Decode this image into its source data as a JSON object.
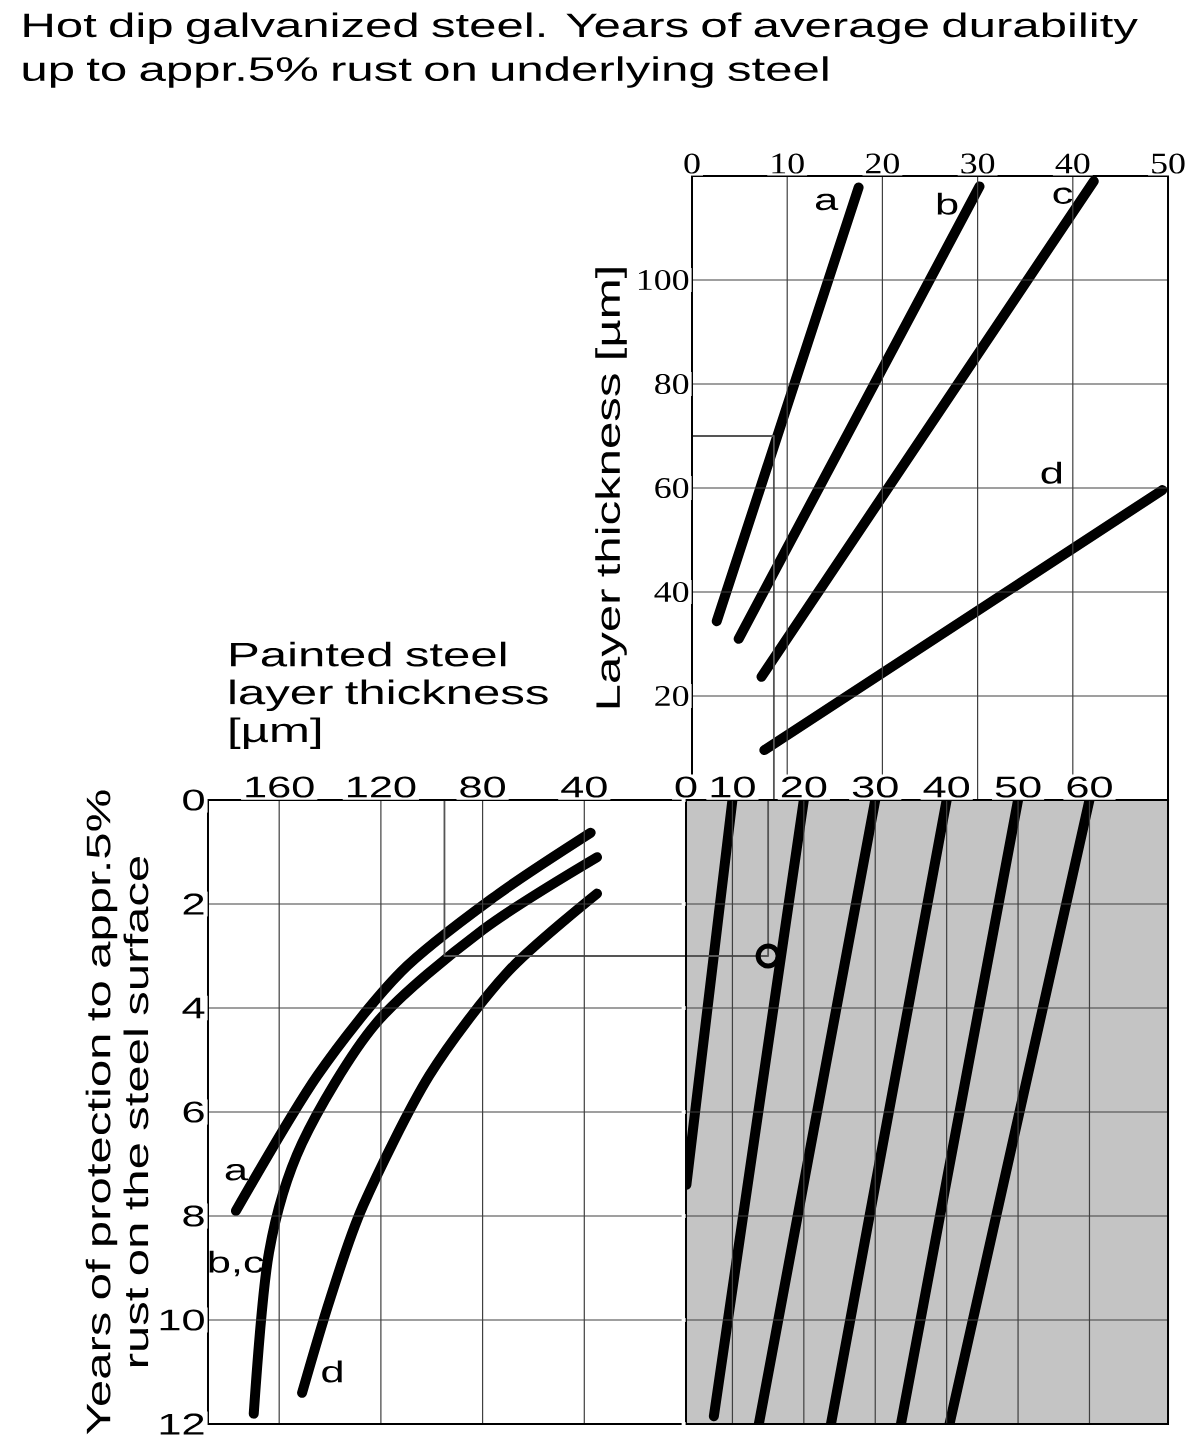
{
  "chart_data": [
    {
      "type": "line",
      "title": "Hot dip galvanized steel. Years of average durability up to appr.5% rust on underlying steel",
      "ylabel": "Layer thickness [µm]",
      "xlim": [
        0,
        50
      ],
      "xticks": [
        0,
        10,
        20,
        30,
        40,
        50
      ],
      "ylim": [
        0,
        120
      ],
      "yticks": [
        20,
        40,
        60,
        80,
        100
      ],
      "grid": true,
      "series": [
        {
          "name": "a",
          "color": "#000000",
          "x": [
            2.6,
            17.5
          ],
          "values": [
            34.4,
            117.8
          ]
        },
        {
          "name": "b",
          "color": "#000000",
          "x": [
            4.9,
            30.2
          ],
          "values": [
            31,
            118
          ]
        },
        {
          "name": "c",
          "color": "#000000",
          "x": [
            7.3,
            42.2
          ],
          "values": [
            23.7,
            119
          ]
        },
        {
          "name": "d",
          "color": "#000000",
          "x": [
            7.6,
            49.4
          ],
          "values": [
            9.6,
            59.6
          ]
        },
        {
          "color": "#555555",
          "x": [
            0,
            8.6,
            8.6
          ],
          "values": [
            70,
            70,
            0
          ]
        }
      ]
    },
    {
      "type": "line",
      "xlabel": "Painted steel layer thickness [µm]",
      "ylabel": "Years of protection to appr.5% rust on the steel surface",
      "xlim": [
        188,
        0
      ],
      "xticks": [
        160,
        120,
        80,
        40,
        0
      ],
      "ylim": [
        12,
        0
      ],
      "yticks": [
        0,
        2,
        4,
        6,
        8,
        10,
        12
      ],
      "grid": true,
      "series": [
        {
          "name": "a",
          "color": "#000000",
          "x": [
            37.5,
            75,
            112,
            145,
            177
          ],
          "values": [
            0.63,
            1.85,
            3.3,
            5.3,
            7.9
          ]
        },
        {
          "name": "b,c",
          "color": "#000000",
          "x": [
            35,
            80,
            122,
            151,
            164,
            170
          ],
          "values": [
            1.1,
            2.5,
            4.3,
            6.6,
            8.7,
            11.8
          ]
        },
        {
          "name": "d",
          "color": "#000000",
          "x": [
            35,
            70,
            101,
            127,
            140,
            151
          ],
          "values": [
            1.8,
            3.3,
            5.3,
            7.8,
            9.6,
            11.4
          ]
        },
        {
          "color": "#555555",
          "x": [
            95,
            95,
            0
          ],
          "values": [
            0,
            3,
            3
          ]
        }
      ]
    },
    {
      "type": "line",
      "xlim": [
        3.5,
        71
      ],
      "xticks": [
        10,
        20,
        30,
        40,
        50,
        60
      ],
      "ylim": [
        12,
        0
      ],
      "yticks": [
        0,
        2,
        4,
        6,
        8,
        10,
        12
      ],
      "grid": true,
      "tick_labels": "x",
      "bands": [
        {
          "axis": "x",
          "from": 3.5,
          "to": 71,
          "color": "#c4c4c4"
        }
      ],
      "series": [
        {
          "color": "#000000",
          "x": [
            10,
            3.55
          ],
          "values": [
            0,
            7.4
          ]
        },
        {
          "color": "#000000",
          "x": [
            20,
            7.4
          ],
          "values": [
            0,
            11.85
          ]
        },
        {
          "color": "#000000",
          "x": [
            30,
            13.7
          ],
          "values": [
            0,
            12
          ]
        },
        {
          "color": "#000000",
          "x": [
            40,
            23.8
          ],
          "values": [
            0,
            12
          ]
        },
        {
          "color": "#000000",
          "x": [
            50,
            33.6
          ],
          "values": [
            0,
            12
          ]
        },
        {
          "color": "#000000",
          "x": [
            60,
            40.4
          ],
          "values": [
            0,
            12
          ]
        },
        {
          "color": "#555555",
          "x": [
            3.5,
            15,
            15
          ],
          "values": [
            3,
            3,
            0
          ]
        },
        {
          "color": "#000000",
          "type": "scatter",
          "marker": "circle",
          "x": [
            15
          ],
          "values": [
            3
          ]
        }
      ]
    }
  ]
}
